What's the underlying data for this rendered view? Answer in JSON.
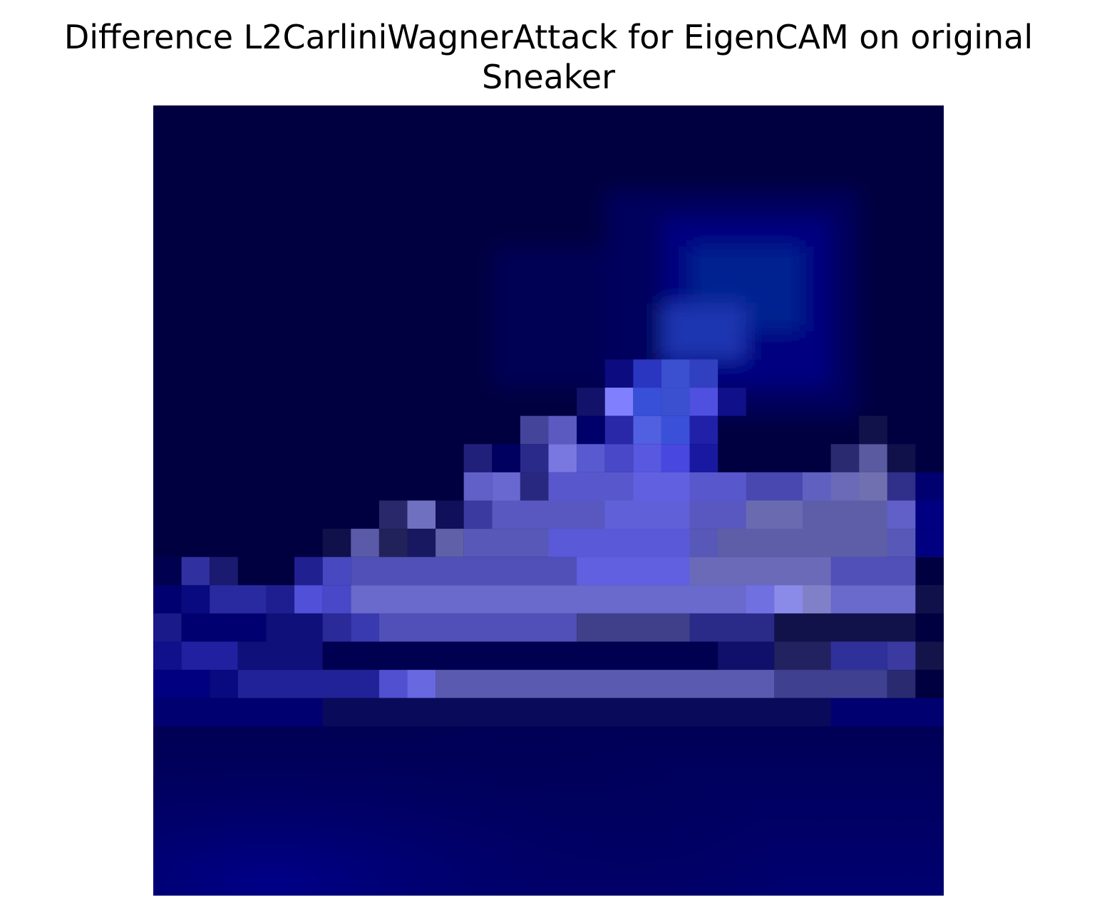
{
  "title": {
    "line1": "Difference L2CarliniWagnerAttack for EigenCAM on original",
    "line2": "Sneaker"
  },
  "image": {
    "description_colors": {
      "background": "#ffffff",
      "dark": "#000033",
      "mid": "#00007a",
      "bright": "#8a8aff"
    }
  }
}
